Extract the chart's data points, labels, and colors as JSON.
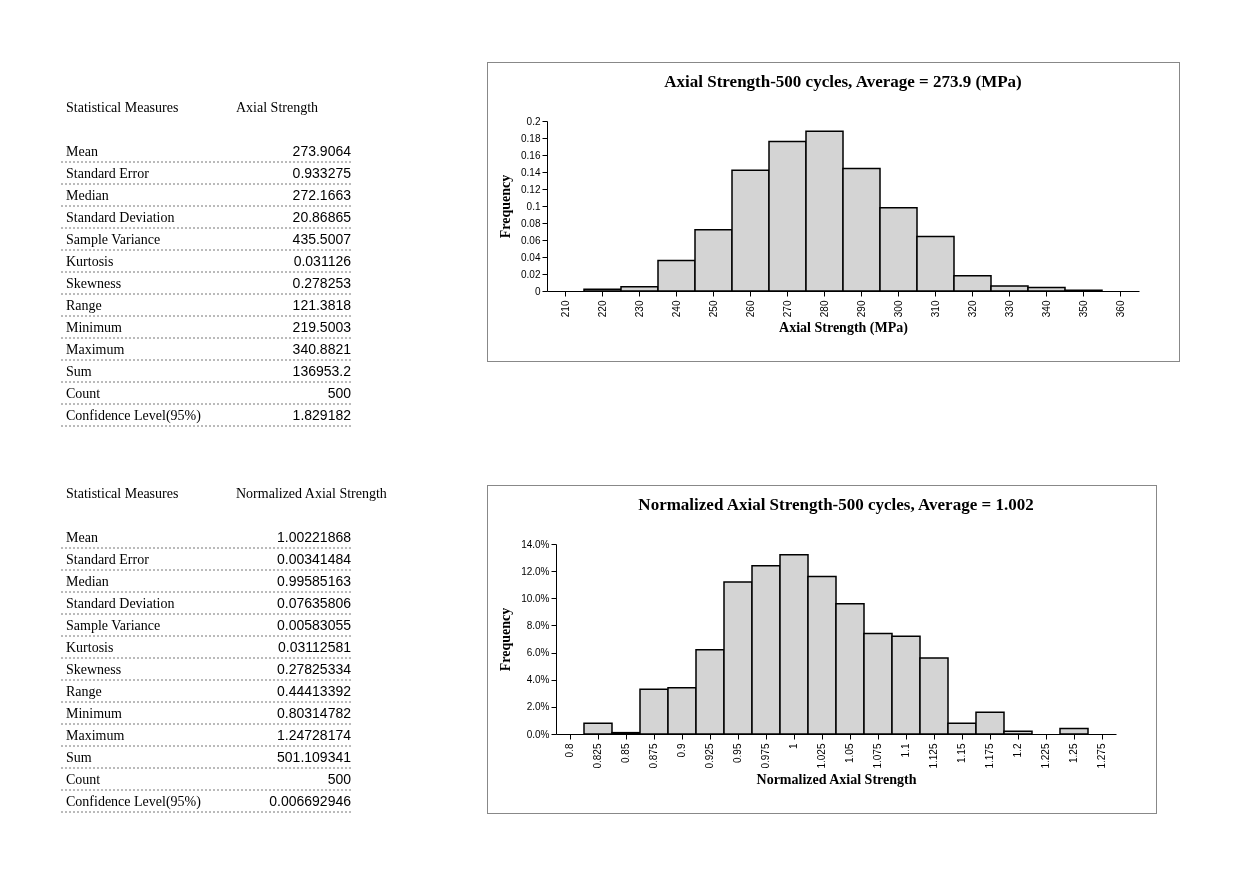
{
  "chart_data": [
    {
      "type": "other",
      "annotations": [
        "Statistical Measures",
        "Axial Strength"
      ],
      "categories": [
        "Mean",
        "Standard Error",
        "Median",
        "Standard Deviation",
        "Sample Variance",
        "Kurtosis",
        "Skewness",
        "Range",
        "Minimum",
        "Maximum",
        "Sum",
        "Count",
        "Confidence Level(95%)"
      ],
      "values": [
        273.9064,
        0.933275,
        272.1663,
        20.86865,
        435.5007,
        0.031126,
        0.278253,
        121.3818,
        219.5003,
        340.8821,
        136953.2,
        500,
        1.829182
      ],
      "data_labels": true
    },
    {
      "type": "bar",
      "title": "Axial Strength-500 cycles, Average = 273.9 (MPa)",
      "xlabel": "Axial Strength (MPa)",
      "ylabel": "Frequency",
      "categories": [
        "210",
        "220",
        "230",
        "240",
        "250",
        "260",
        "270",
        "280",
        "290",
        "300",
        "310",
        "320",
        "330",
        "340",
        "350",
        "360"
      ],
      "values": [
        0,
        0.002,
        0.005,
        0.036,
        0.072,
        0.142,
        0.176,
        0.188,
        0.144,
        0.098,
        0.064,
        0.018,
        0.006,
        0.004,
        0.001,
        0
      ],
      "color": "#d4d4d4",
      "ylim": [
        0,
        0.2
      ],
      "yticks": [
        0,
        0.02,
        0.04,
        0.06,
        0.08,
        0.1,
        0.12,
        0.14,
        0.16,
        0.18,
        0.2
      ]
    },
    {
      "type": "other",
      "annotations": [
        "Statistical Measures",
        "Normalized Axial Strength"
      ],
      "categories": [
        "Mean",
        "Standard Error",
        "Median",
        "Standard Deviation",
        "Sample Variance",
        "Kurtosis",
        "Skewness",
        "Range",
        "Minimum",
        "Maximum",
        "Sum",
        "Count",
        "Confidence Level(95%)"
      ],
      "values": [
        1.00221868,
        0.00341484,
        0.99585163,
        0.07635806,
        0.00583055,
        0.03112581,
        0.27825334,
        0.44413392,
        0.80314782,
        1.24728174,
        501.109341,
        500,
        0.006692946
      ],
      "data_labels": true
    },
    {
      "type": "bar",
      "title": "Normalized Axial Strength-500 cycles, Average = 1.002",
      "xlabel": "Normalized Axial Strength",
      "ylabel": "Frequency",
      "categories": [
        "0.8",
        "0.825",
        "0.85",
        "0.875",
        "0.9",
        "0.925",
        "0.95",
        "0.975",
        "1",
        "1.025",
        "1.05",
        "1.075",
        "1.1",
        "1.125",
        "1.15",
        "1.175",
        "1.2",
        "1.225",
        "1.25",
        "1.275"
      ],
      "values": [
        0,
        0.8,
        0.1,
        3.3,
        3.4,
        6.2,
        11.2,
        12.4,
        13.2,
        11.6,
        9.6,
        7.4,
        7.2,
        5.6,
        0.8,
        1.6,
        0.2,
        0,
        0.4,
        0
      ],
      "color": "#d4d4d4",
      "ylim": [
        0,
        14
      ],
      "yticks": [
        {
          "value": 0,
          "label": "0.0%"
        },
        {
          "value": 2,
          "label": "2.0%"
        },
        {
          "value": 4,
          "label": "4.0%"
        },
        {
          "value": 6,
          "label": "6.0%"
        },
        {
          "value": 8,
          "label": "8.0%"
        },
        {
          "value": 10,
          "label": "10.0%"
        },
        {
          "value": 12,
          "label": "12.0%"
        },
        {
          "value": 14,
          "label": "14.0%"
        }
      ]
    }
  ]
}
